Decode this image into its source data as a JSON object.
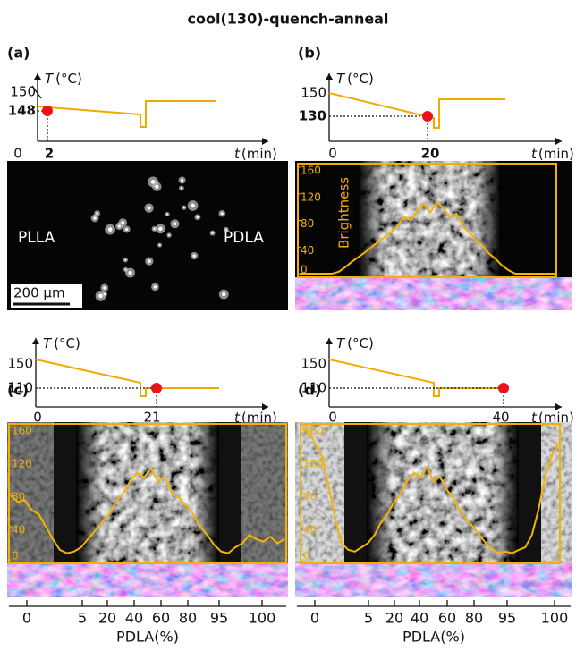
{
  "title": "cool(130)-quench-anneal",
  "panels": [
    {
      "label": "(a)",
      "T_symbol": "T",
      "T_unit": "(°C)",
      "t_symbol": "t",
      "t_unit": "(min)",
      "temperatures": [
        "150",
        "148"
      ],
      "times": [
        "0",
        "2"
      ],
      "image_labels": [
        "PLLA",
        "PDLA"
      ],
      "scale_bar": "200 µm"
    },
    {
      "label": "(b)",
      "T_symbol": "T",
      "T_unit": "(°C)",
      "t_symbol": "t",
      "t_unit": "(min)",
      "temperatures": [
        "150",
        "130"
      ],
      "times": [
        "0",
        "20"
      ],
      "brightness": {
        "label": "Brightness",
        "ylim": [
          0,
          160
        ],
        "yticks": [
          0,
          40,
          80,
          120,
          160
        ],
        "values": [
          0,
          0,
          0,
          0,
          0,
          0,
          3,
          10,
          18,
          25,
          32,
          40,
          48,
          55,
          62,
          72,
          85,
          80,
          95,
          105,
          92,
          108,
          98,
          85,
          90,
          70,
          62,
          50,
          42,
          30,
          22,
          12,
          5,
          0,
          0,
          0,
          0,
          0,
          0,
          0
        ]
      }
    },
    {
      "label": "(c)",
      "T_symbol": "T",
      "T_unit": "(°C)",
      "t_symbol": "t",
      "t_unit": "(min)",
      "temperatures": [
        "150",
        "110"
      ],
      "times": [
        "0",
        "21"
      ],
      "brightness": {
        "ylim": [
          0,
          160
        ],
        "yticks": [
          0,
          40,
          80,
          120,
          160
        ],
        "values": [
          78,
          70,
          72,
          60,
          55,
          40,
          25,
          12,
          8,
          10,
          15,
          25,
          35,
          45,
          55,
          70,
          80,
          95,
          105,
          100,
          110,
          95,
          100,
          80,
          75,
          65,
          55,
          40,
          30,
          18,
          10,
          8,
          15,
          20,
          30,
          25,
          22,
          28,
          20,
          25
        ]
      },
      "composition_axis": {
        "label": "PDLA(%)",
        "ticks": [
          0,
          5,
          20,
          40,
          60,
          80,
          95,
          100
        ]
      }
    },
    {
      "label": "(d)",
      "T_symbol": "T",
      "T_unit": "(°C)",
      "t_symbol": "t",
      "t_unit": "(min)",
      "temperatures": [
        "150",
        "110"
      ],
      "times": [
        "0",
        "40"
      ],
      "brightness": {
        "ylim": [
          0,
          160
        ],
        "yticks": [
          0,
          40,
          80,
          120,
          160
        ],
        "values": [
          158,
          155,
          140,
          125,
          90,
          50,
          20,
          12,
          10,
          15,
          20,
          30,
          45,
          55,
          70,
          80,
          95,
          105,
          100,
          112,
          95,
          100,
          85,
          75,
          60,
          50,
          40,
          30,
          20,
          12,
          8,
          10,
          8,
          12,
          15,
          30,
          60,
          100,
          125,
          140
        ]
      },
      "composition_axis": {
        "label": "PDLA(%)",
        "ticks": [
          0,
          5,
          20,
          40,
          60,
          80,
          95,
          100
        ]
      }
    }
  ]
}
